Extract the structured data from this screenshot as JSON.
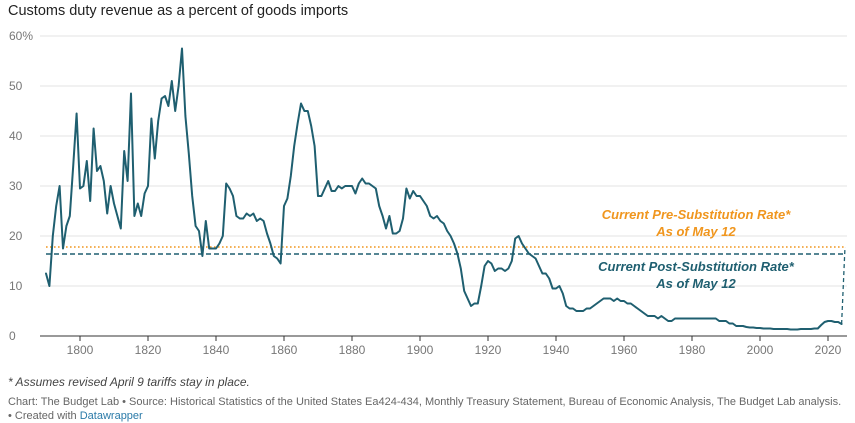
{
  "chart_data": {
    "type": "line",
    "title": "Customs duty revenue as a percent of goods imports",
    "xlabel": "",
    "ylabel": "",
    "xlim": [
      1790,
      2026
    ],
    "ylim": [
      0,
      60
    ],
    "x_ticks": [
      1800,
      1820,
      1840,
      1860,
      1880,
      1900,
      1920,
      1940,
      1960,
      1980,
      2000,
      2020
    ],
    "y_ticks": [
      0,
      10,
      20,
      30,
      40,
      50,
      60
    ],
    "y_tick_labels": [
      "0",
      "10",
      "20",
      "30",
      "40",
      "50",
      "60%"
    ],
    "grid": true,
    "colors": {
      "line": "#1f5f70",
      "pre": "#f0961e",
      "post": "#1f5f70",
      "grid": "#e3e3e3",
      "axis": "#333333"
    },
    "series": [
      {
        "values": [
          [
            1790,
            12.5
          ],
          [
            1791,
            10
          ],
          [
            1792,
            20
          ],
          [
            1793,
            26
          ],
          [
            1794,
            30
          ],
          [
            1795,
            17.5
          ],
          [
            1796,
            22
          ],
          [
            1797,
            24
          ],
          [
            1798,
            34
          ],
          [
            1799,
            44.5
          ],
          [
            1800,
            29.5
          ],
          [
            1801,
            30
          ],
          [
            1802,
            35
          ],
          [
            1803,
            27
          ],
          [
            1804,
            41.5
          ],
          [
            1805,
            33
          ],
          [
            1806,
            34
          ],
          [
            1807,
            31
          ],
          [
            1808,
            24.5
          ],
          [
            1809,
            30
          ],
          [
            1810,
            26.5
          ],
          [
            1811,
            24
          ],
          [
            1812,
            21.5
          ],
          [
            1813,
            37
          ],
          [
            1814,
            31
          ],
          [
            1815,
            48.5
          ],
          [
            1816,
            24
          ],
          [
            1817,
            26.5
          ],
          [
            1818,
            24
          ],
          [
            1819,
            28.5
          ],
          [
            1820,
            30
          ],
          [
            1821,
            43.5
          ],
          [
            1822,
            35.5
          ],
          [
            1823,
            43
          ],
          [
            1824,
            47.5
          ],
          [
            1825,
            48
          ],
          [
            1826,
            46
          ],
          [
            1827,
            51
          ],
          [
            1828,
            45
          ],
          [
            1829,
            50
          ],
          [
            1830,
            57.5
          ],
          [
            1831,
            44
          ],
          [
            1832,
            36.5
          ],
          [
            1833,
            28
          ],
          [
            1834,
            22
          ],
          [
            1835,
            21
          ],
          [
            1836,
            16
          ],
          [
            1837,
            23
          ],
          [
            1838,
            17.5
          ],
          [
            1839,
            17.5
          ],
          [
            1840,
            17.5
          ],
          [
            1841,
            18.5
          ],
          [
            1842,
            20
          ],
          [
            1843,
            30.5
          ],
          [
            1844,
            29.5
          ],
          [
            1845,
            28
          ],
          [
            1846,
            24
          ],
          [
            1847,
            23.5
          ],
          [
            1848,
            23.5
          ],
          [
            1849,
            24.5
          ],
          [
            1850,
            24
          ],
          [
            1851,
            24.5
          ],
          [
            1852,
            23
          ],
          [
            1853,
            23.5
          ],
          [
            1854,
            23
          ],
          [
            1855,
            20.5
          ],
          [
            1856,
            18.5
          ],
          [
            1857,
            16
          ],
          [
            1858,
            15.5
          ],
          [
            1859,
            14.5
          ],
          [
            1860,
            26
          ],
          [
            1861,
            27.5
          ],
          [
            1862,
            32
          ],
          [
            1863,
            38
          ],
          [
            1864,
            42.5
          ],
          [
            1865,
            46.5
          ],
          [
            1866,
            45
          ],
          [
            1867,
            45
          ],
          [
            1868,
            42
          ],
          [
            1869,
            38
          ],
          [
            1870,
            28
          ],
          [
            1871,
            28
          ],
          [
            1872,
            29.5
          ],
          [
            1873,
            31
          ],
          [
            1874,
            29
          ],
          [
            1875,
            29
          ],
          [
            1876,
            30
          ],
          [
            1877,
            29.5
          ],
          [
            1878,
            30
          ],
          [
            1879,
            30
          ],
          [
            1880,
            30
          ],
          [
            1881,
            28.5
          ],
          [
            1882,
            30.5
          ],
          [
            1883,
            31.5
          ],
          [
            1884,
            30.5
          ],
          [
            1885,
            30.5
          ],
          [
            1886,
            30
          ],
          [
            1887,
            29.5
          ],
          [
            1888,
            26
          ],
          [
            1889,
            24
          ],
          [
            1890,
            21.5
          ],
          [
            1891,
            24
          ],
          [
            1892,
            20.5
          ],
          [
            1893,
            20.5
          ],
          [
            1894,
            21
          ],
          [
            1895,
            23.5
          ],
          [
            1896,
            29.5
          ],
          [
            1897,
            27.5
          ],
          [
            1898,
            29
          ],
          [
            1899,
            28
          ],
          [
            1900,
            28
          ],
          [
            1901,
            27
          ],
          [
            1902,
            26
          ],
          [
            1903,
            24
          ],
          [
            1904,
            23.5
          ],
          [
            1905,
            24
          ],
          [
            1906,
            23
          ],
          [
            1907,
            22.5
          ],
          [
            1908,
            21
          ],
          [
            1909,
            20
          ],
          [
            1910,
            18.5
          ],
          [
            1911,
            16.5
          ],
          [
            1912,
            13.5
          ],
          [
            1913,
            9
          ],
          [
            1914,
            7.5
          ],
          [
            1915,
            6
          ],
          [
            1916,
            6.5
          ],
          [
            1917,
            6.5
          ],
          [
            1918,
            10
          ],
          [
            1919,
            14
          ],
          [
            1920,
            15
          ],
          [
            1921,
            14.5
          ],
          [
            1922,
            13
          ],
          [
            1923,
            13.5
          ],
          [
            1924,
            13.5
          ],
          [
            1925,
            13
          ],
          [
            1926,
            13.5
          ],
          [
            1927,
            15
          ],
          [
            1928,
            19.5
          ],
          [
            1929,
            20
          ],
          [
            1930,
            18.5
          ],
          [
            1931,
            17.5
          ],
          [
            1932,
            16.5
          ],
          [
            1933,
            16
          ],
          [
            1934,
            15.5
          ],
          [
            1935,
            14
          ],
          [
            1936,
            12.5
          ],
          [
            1937,
            12.5
          ],
          [
            1938,
            11.5
          ],
          [
            1939,
            9.5
          ],
          [
            1940,
            9.5
          ],
          [
            1941,
            10
          ],
          [
            1942,
            8.5
          ],
          [
            1943,
            6
          ],
          [
            1944,
            5.5
          ],
          [
            1945,
            5.5
          ],
          [
            1946,
            5
          ],
          [
            1947,
            5
          ],
          [
            1948,
            5
          ],
          [
            1949,
            5.5
          ],
          [
            1950,
            5.5
          ],
          [
            1951,
            6
          ],
          [
            1952,
            6.5
          ],
          [
            1953,
            7
          ],
          [
            1954,
            7.5
          ],
          [
            1955,
            7.5
          ],
          [
            1956,
            7.5
          ],
          [
            1957,
            7
          ],
          [
            1958,
            7.5
          ],
          [
            1959,
            7
          ],
          [
            1960,
            7
          ],
          [
            1961,
            6.5
          ],
          [
            1962,
            6.5
          ],
          [
            1963,
            6
          ],
          [
            1964,
            5.5
          ],
          [
            1965,
            5
          ],
          [
            1966,
            4.5
          ],
          [
            1967,
            4
          ],
          [
            1968,
            4
          ],
          [
            1969,
            4
          ],
          [
            1970,
            3.5
          ],
          [
            1971,
            4
          ],
          [
            1972,
            3.5
          ],
          [
            1973,
            3
          ],
          [
            1974,
            3
          ],
          [
            1975,
            3.5
          ],
          [
            1976,
            3.5
          ],
          [
            1977,
            3.5
          ],
          [
            1978,
            3.5
          ],
          [
            1979,
            3.5
          ],
          [
            1980,
            3.5
          ],
          [
            1981,
            3.5
          ],
          [
            1982,
            3.5
          ],
          [
            1983,
            3.5
          ],
          [
            1984,
            3.5
          ],
          [
            1985,
            3.5
          ],
          [
            1986,
            3.5
          ],
          [
            1987,
            3.5
          ],
          [
            1988,
            3
          ],
          [
            1989,
            3
          ],
          [
            1990,
            3
          ],
          [
            1991,
            2.5
          ],
          [
            1992,
            2.5
          ],
          [
            1993,
            2
          ],
          [
            1994,
            2
          ],
          [
            1995,
            2
          ],
          [
            1996,
            1.8
          ],
          [
            1997,
            1.7
          ],
          [
            1998,
            1.7
          ],
          [
            1999,
            1.6
          ],
          [
            2000,
            1.6
          ],
          [
            2001,
            1.5
          ],
          [
            2002,
            1.5
          ],
          [
            2003,
            1.5
          ],
          [
            2004,
            1.4
          ],
          [
            2005,
            1.4
          ],
          [
            2006,
            1.4
          ],
          [
            2007,
            1.4
          ],
          [
            2008,
            1.4
          ],
          [
            2009,
            1.3
          ],
          [
            2010,
            1.3
          ],
          [
            2011,
            1.3
          ],
          [
            2012,
            1.4
          ],
          [
            2013,
            1.4
          ],
          [
            2014,
            1.4
          ],
          [
            2015,
            1.4
          ],
          [
            2016,
            1.5
          ],
          [
            2017,
            1.5
          ],
          [
            2018,
            2.2
          ],
          [
            2019,
            2.8
          ],
          [
            2020,
            3
          ],
          [
            2021,
            3
          ],
          [
            2022,
            2.8
          ],
          [
            2023,
            2.8
          ],
          [
            2024,
            2.4
          ]
        ]
      }
    ],
    "reference_lines": [
      {
        "name": "Current Pre-Substitution Rate*",
        "value": 17.8,
        "from": 1790,
        "to": 2025,
        "style": "dotted",
        "label": [
          "Current Pre-Substitution Rate*",
          "As of May 12"
        ]
      },
      {
        "name": "Current Post-Substitution Rate*",
        "value": 16.4,
        "from": 1790,
        "to": 2025,
        "style": "dashed",
        "label": [
          "Current Post-Substitution Rate*",
          "As of May 12"
        ]
      }
    ]
  },
  "footnote": "* Assumes revised April 9 tariffs stay in place.",
  "source_text": "Chart: The Budget Lab • Source: Historical Statistics of the United States Ea424-434, Monthly Treasury Statement, Bureau of Economic Analysis, The Budget Lab analysis. • Created with",
  "source_link": "Datawrapper"
}
